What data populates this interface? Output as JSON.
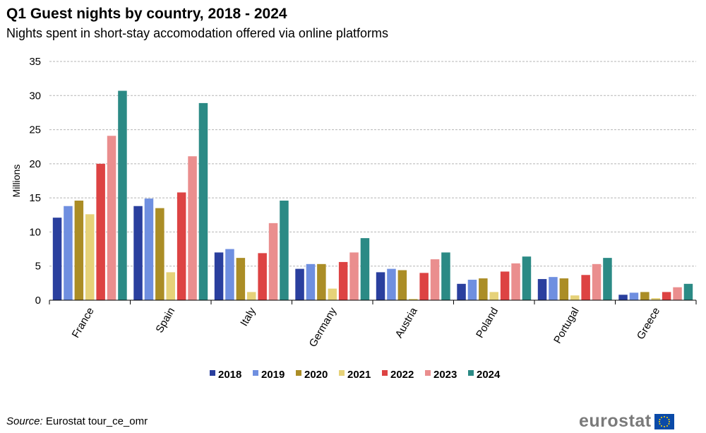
{
  "title": "Q1 Guest nights by country, 2018 - 2024",
  "subtitle": "Nights spent in short-stay accomodation offered via online platforms",
  "source": {
    "label": "Source:",
    "text": "Eurostat tour_ce_omr"
  },
  "logo": {
    "text": "eurostat",
    "icon": "eu-flag-icon"
  },
  "chart_data": {
    "type": "bar",
    "title": "Q1 Guest nights by country, 2018 - 2024",
    "ylabel": "Millions",
    "xlabel": "",
    "ylim": [
      0,
      35
    ],
    "yticks": [
      0,
      5,
      10,
      15,
      20,
      25,
      30,
      35
    ],
    "grid": true,
    "legend": "bottom",
    "categories": [
      "France",
      "Spain",
      "Italy",
      "Germany",
      "Austria",
      "Poland",
      "Portugal",
      "Greece"
    ],
    "series": [
      {
        "name": "2018",
        "color": "#2a3f9e",
        "values": [
          12.1,
          13.8,
          7.0,
          4.6,
          4.1,
          2.4,
          3.1,
          0.8
        ]
      },
      {
        "name": "2019",
        "color": "#6f8fe0",
        "values": [
          13.8,
          14.9,
          7.5,
          5.3,
          4.6,
          3.0,
          3.4,
          1.1
        ]
      },
      {
        "name": "2020",
        "color": "#ab8d26",
        "values": [
          14.6,
          13.5,
          6.2,
          5.3,
          4.4,
          3.2,
          3.2,
          1.2
        ]
      },
      {
        "name": "2021",
        "color": "#e6d279",
        "values": [
          12.6,
          4.1,
          1.2,
          1.7,
          0.2,
          1.2,
          0.7,
          0.3
        ]
      },
      {
        "name": "2022",
        "color": "#dd4343",
        "values": [
          20.0,
          15.8,
          6.9,
          5.6,
          4.0,
          4.2,
          3.7,
          1.2
        ]
      },
      {
        "name": "2023",
        "color": "#ea8e8e",
        "values": [
          24.1,
          21.1,
          11.3,
          7.0,
          6.0,
          5.4,
          5.3,
          1.9
        ]
      },
      {
        "name": "2024",
        "color": "#2b8a85",
        "values": [
          30.7,
          28.9,
          14.6,
          9.1,
          7.0,
          6.4,
          6.2,
          2.4
        ]
      }
    ]
  }
}
